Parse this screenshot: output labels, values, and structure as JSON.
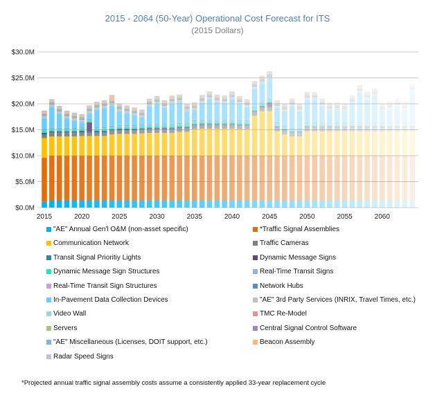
{
  "chart_data": {
    "type": "bar",
    "stacked": true,
    "title": "2015 - 2064 (50-Year) Operational Cost Forecast for ITS",
    "subtitle": "(2015 Dollars)",
    "xlabel": "",
    "ylabel": "",
    "ylim": [
      0,
      30
    ],
    "y_ticks": [
      "$0.0M",
      "$5.0M",
      "$10.0M",
      "$15.0M",
      "$20.0M",
      "$25.0M",
      "$30.0M"
    ],
    "x_ticks": [
      "2015",
      "2020",
      "2025",
      "2030",
      "2035",
      "2040",
      "2045",
      "2050",
      "2055",
      "2060"
    ],
    "grid": true,
    "legend": "bottom",
    "note": "later years drawn progressively faded",
    "categories": [
      2015,
      2016,
      2017,
      2018,
      2019,
      2020,
      2021,
      2022,
      2023,
      2024,
      2025,
      2026,
      2027,
      2028,
      2029,
      2030,
      2031,
      2032,
      2033,
      2034,
      2035,
      2036,
      2037,
      2038,
      2039,
      2040,
      2041,
      2042,
      2043,
      2044,
      2045,
      2046,
      2047,
      2048,
      2049,
      2050,
      2051,
      2052,
      2053,
      2054,
      2055,
      2056,
      2057,
      2058,
      2059,
      2060,
      2061,
      2062,
      2063,
      2064
    ],
    "series": [
      {
        "name": "\"AE\" Annual Gen'l O&M (non-asset specific)",
        "color": "#00b0f0",
        "values": [
          1.1,
          1.4,
          1.4,
          1.4,
          1.4,
          1.4,
          1.4,
          1.4,
          1.4,
          1.4,
          1.4,
          1.4,
          1.4,
          1.4,
          1.4,
          1.4,
          1.4,
          1.4,
          1.4,
          1.4,
          1.4,
          1.4,
          1.4,
          1.4,
          1.4,
          1.4,
          1.4,
          1.4,
          1.4,
          1.4,
          1.4,
          1.4,
          1.4,
          1.4,
          1.4,
          1.4,
          1.4,
          1.4,
          1.4,
          1.4,
          1.4,
          1.4,
          1.4,
          1.4,
          1.4,
          1.4,
          1.4,
          1.4,
          1.4,
          1.4
        ]
      },
      {
        "name": "*Traffic Signal Assemblies",
        "color": "#e46c0a",
        "values": [
          8.5,
          8.6,
          8.6,
          8.6,
          8.6,
          8.6,
          8.6,
          8.6,
          8.6,
          8.6,
          8.6,
          8.6,
          8.6,
          8.6,
          8.6,
          8.6,
          8.6,
          8.6,
          8.6,
          8.6,
          8.6,
          8.6,
          8.6,
          8.6,
          8.6,
          8.6,
          8.6,
          8.6,
          8.6,
          8.6,
          8.6,
          8.6,
          8.6,
          8.6,
          8.6,
          8.6,
          8.6,
          8.6,
          8.6,
          8.6,
          8.6,
          8.6,
          8.6,
          8.6,
          8.6,
          8.6,
          8.6,
          8.6,
          8.6,
          8.6
        ]
      },
      {
        "name": "Communication Network",
        "color": "#ffc000",
        "values": [
          3.8,
          3.7,
          3.7,
          3.7,
          3.7,
          3.8,
          3.8,
          3.8,
          3.8,
          4.1,
          4.2,
          4.2,
          4.2,
          4.3,
          4.4,
          4.4,
          4.4,
          4.4,
          4.6,
          4.6,
          5.1,
          5.2,
          5.2,
          5.2,
          5.2,
          5.2,
          5.1,
          5.1,
          7.7,
          8.6,
          8.6,
          4.7,
          4.1,
          3.7,
          3.7,
          4.7,
          4.7,
          4.7,
          4.7,
          4.7,
          4.7,
          4.7,
          4.7,
          4.7,
          4.7,
          4.7,
          4.7,
          4.7,
          4.7,
          4.7
        ]
      },
      {
        "name": "Traffic Cameras",
        "color": "#808080",
        "values": [
          0.6,
          0.6,
          0.6,
          0.6,
          0.6,
          0.6,
          0.6,
          0.6,
          0.6,
          0.6,
          0.6,
          0.6,
          0.6,
          0.6,
          0.6,
          0.6,
          0.6,
          0.6,
          0.6,
          0.6,
          0.6,
          0.6,
          0.6,
          0.6,
          0.6,
          0.6,
          0.6,
          0.6,
          0.6,
          0.6,
          0.6,
          0.6,
          0.6,
          0.6,
          0.6,
          0.6,
          0.6,
          0.6,
          0.6,
          0.6,
          0.6,
          0.6,
          0.6,
          0.6,
          0.6,
          0.6,
          0.6,
          0.6,
          0.6,
          0.6
        ]
      },
      {
        "name": "Transit Signal Prioritiy Lights",
        "color": "#31859c",
        "values": [
          0.2,
          0.2,
          0.2,
          0.2,
          0.2,
          0.2,
          0.2,
          0.2,
          0.2,
          0.2,
          0.2,
          0.2,
          0.2,
          0.2,
          0.2,
          0.2,
          0.2,
          0.2,
          0.2,
          0.2,
          0.2,
          0.2,
          0.2,
          0.2,
          0.2,
          0.2,
          0.2,
          0.2,
          0.2,
          0.2,
          0.2,
          0.2,
          0.2,
          0.2,
          0.2,
          0.2,
          0.2,
          0.2,
          0.2,
          0.2,
          0.2,
          0.2,
          0.2,
          0.2,
          0.2,
          0.2,
          0.2,
          0.2,
          0.2,
          0.2
        ]
      },
      {
        "name": "Dynamic Message Signs",
        "color": "#604a7b",
        "values": [
          0.2,
          0.2,
          0.2,
          0.2,
          0.2,
          0.2,
          1.8,
          0.2,
          0.2,
          0.2,
          0.2,
          0.2,
          0.2,
          0.2,
          0.2,
          0.2,
          0.2,
          0.2,
          0.2,
          0.2,
          0.2,
          0.2,
          0.2,
          0.2,
          0.2,
          0.2,
          0.2,
          0.2,
          0.2,
          0.2,
          0.9,
          0.2,
          0.2,
          0.2,
          0.2,
          0.2,
          0.2,
          0.2,
          0.2,
          0.2,
          0.2,
          0.2,
          0.2,
          0.2,
          0.2,
          0.2,
          0.2,
          0.2,
          0.2,
          0.2
        ]
      },
      {
        "name": "Dynamic Message Sign Structures",
        "color": "#1de9b6",
        "values": [
          0.4,
          0.4,
          0.4,
          0.4,
          0.4,
          0.4,
          0.4,
          0.4,
          0.4,
          0.4,
          0.4,
          0.4,
          0.4,
          0.4,
          0.4,
          0.4,
          0.4,
          0.4,
          0.4,
          0.4,
          0.4,
          0.4,
          0.4,
          0.4,
          0.4,
          0.4,
          0.4,
          0.4,
          0.4,
          0.4,
          0.4,
          0.4,
          0.4,
          0.4,
          0.4,
          0.4,
          0.4,
          0.4,
          0.4,
          0.4,
          0.4,
          0.4,
          0.4,
          0.4,
          0.4,
          0.4,
          0.4,
          0.4,
          0.4,
          0.4
        ]
      },
      {
        "name": "Real-Time Transit Signs",
        "color": "#95b3d7",
        "values": [
          0.1,
          0.1,
          0.1,
          0.1,
          0.1,
          0.1,
          0.1,
          0.1,
          0.1,
          0.1,
          0.1,
          0.1,
          0.1,
          0.1,
          0.1,
          0.1,
          0.1,
          0.1,
          0.1,
          0.1,
          0.1,
          0.1,
          0.1,
          0.1,
          0.1,
          0.1,
          0.1,
          0.1,
          0.1,
          0.1,
          0.1,
          0.1,
          0.1,
          0.1,
          0.1,
          0.1,
          0.1,
          0.1,
          0.1,
          0.1,
          0.1,
          0.1,
          0.1,
          0.1,
          0.1,
          0.1,
          0.1,
          0.1,
          0.1,
          0.1
        ]
      },
      {
        "name": "Real-Time Transit Sign Structures",
        "color": "#c9a0dc",
        "values": [
          0.05,
          0.05,
          0.05,
          0.05,
          0.05,
          0.05,
          0.05,
          0.05,
          0.05,
          0.05,
          0.05,
          0.05,
          0.05,
          0.05,
          0.05,
          0.05,
          0.05,
          0.05,
          0.05,
          0.05,
          0.05,
          0.05,
          0.05,
          0.05,
          0.05,
          0.05,
          0.05,
          0.05,
          0.05,
          0.05,
          0.05,
          0.05,
          0.05,
          0.05,
          0.05,
          0.05,
          0.05,
          0.05,
          0.05,
          0.05,
          0.05,
          0.05,
          0.05,
          0.05,
          0.05,
          0.05,
          0.05,
          0.05,
          0.05,
          0.05
        ]
      },
      {
        "name": "Network Hubs",
        "color": "#558ed5",
        "values": [
          0.1,
          0.1,
          0.1,
          0.1,
          0.1,
          0.1,
          0.1,
          0.1,
          0.1,
          0.1,
          0.1,
          0.1,
          0.1,
          0.1,
          0.1,
          0.1,
          0.1,
          0.1,
          0.1,
          0.1,
          0.1,
          0.1,
          0.1,
          0.1,
          0.1,
          0.1,
          0.1,
          0.1,
          0.1,
          0.1,
          0.1,
          0.1,
          0.1,
          0.1,
          0.1,
          0.1,
          0.1,
          0.1,
          0.1,
          0.1,
          0.1,
          0.1,
          0.1,
          0.1,
          0.1,
          0.1,
          0.1,
          0.1,
          0.1,
          0.1
        ]
      },
      {
        "name": "In-Pavement Data Collection Devices",
        "color": "#66ccff",
        "values": [
          2.1,
          4.0,
          2.7,
          1.8,
          1.4,
          1.0,
          1.1,
          3.4,
          3.7,
          3.9,
          2.7,
          2.3,
          1.9,
          1.4,
          3.4,
          3.9,
          3.1,
          4.0,
          4.0,
          2.3,
          2.0,
          3.3,
          4.0,
          3.4,
          3.2,
          4.0,
          3.2,
          2.6,
          3.5,
          3.6,
          3.8,
          2.8,
          2.8,
          4.1,
          3.2,
          4.4,
          4.4,
          3.1,
          2.3,
          2.4,
          2.2,
          3.7,
          5.7,
          4.5,
          5.1,
          2.2,
          2.5,
          3.1,
          2.5,
          6.0
        ]
      },
      {
        "name": "\"AE\" 3rd Party Services (INRIX, Travel Times, etc.)",
        "color": "#c0c0c0",
        "values": [
          0.3,
          0.3,
          0.3,
          0.3,
          0.3,
          0.3,
          0.3,
          0.3,
          0.3,
          0.3,
          0.3,
          0.3,
          0.3,
          0.3,
          0.3,
          0.3,
          0.3,
          0.3,
          0.3,
          0.3,
          0.3,
          0.3,
          0.3,
          0.3,
          0.3,
          0.3,
          0.3,
          0.3,
          0.3,
          0.3,
          0.3,
          0.3,
          0.3,
          0.3,
          0.3,
          0.3,
          0.3,
          0.3,
          0.3,
          0.3,
          0.3,
          0.3,
          0.3,
          0.3,
          0.3,
          0.3,
          0.3,
          0.3,
          0.3,
          0.3
        ]
      },
      {
        "name": "Video Wall",
        "color": "#9dd3e0",
        "values": [
          0.2,
          0.2,
          0.2,
          0.2,
          0.2,
          0.2,
          0.2,
          0.2,
          0.2,
          0.2,
          0.2,
          0.2,
          0.2,
          0.2,
          0.2,
          0.2,
          0.2,
          0.2,
          0.2,
          0.2,
          0.2,
          0.2,
          0.2,
          0.2,
          0.2,
          0.2,
          0.2,
          0.2,
          0.2,
          0.2,
          0.2,
          0.2,
          0.2,
          0.2,
          0.2,
          0.2,
          0.2,
          0.2,
          0.2,
          0.2,
          0.2,
          0.2,
          0.2,
          0.2,
          0.2,
          0.2,
          0.2,
          0.2,
          0.2,
          0.2
        ]
      },
      {
        "name": "TMC Re-Model",
        "color": "#d99694",
        "values": [
          0.02,
          0.02,
          0.02,
          0.02,
          0.02,
          0.02,
          0.02,
          0.02,
          0.02,
          0.02,
          0.02,
          0.02,
          0.02,
          0.02,
          0.02,
          0.02,
          0.02,
          0.02,
          0.02,
          0.02,
          0.02,
          0.02,
          0.02,
          0.02,
          0.02,
          0.02,
          0.02,
          0.02,
          0.02,
          0.02,
          0.02,
          0.02,
          0.02,
          0.02,
          0.02,
          0.02,
          0.02,
          0.02,
          0.02,
          0.02,
          0.02,
          0.02,
          0.02,
          0.02,
          0.02,
          0.02,
          0.02,
          0.02,
          0.02,
          0.02
        ]
      },
      {
        "name": "Servers",
        "color": "#a9c47f",
        "values": [
          0.02,
          0.02,
          0.02,
          0.02,
          0.02,
          0.02,
          0.02,
          0.02,
          0.02,
          0.02,
          0.02,
          0.02,
          0.02,
          0.02,
          0.02,
          0.02,
          0.02,
          0.02,
          0.02,
          0.02,
          0.02,
          0.02,
          0.02,
          0.02,
          0.02,
          0.02,
          0.02,
          0.02,
          0.02,
          0.02,
          0.02,
          0.02,
          0.02,
          0.02,
          0.02,
          0.02,
          0.02,
          0.02,
          0.02,
          0.02,
          0.02,
          0.02,
          0.02,
          0.02,
          0.02,
          0.02,
          0.02,
          0.02,
          0.02,
          0.02
        ]
      },
      {
        "name": "Central Signal Control Software",
        "color": "#9e86c0",
        "values": [
          0.1,
          0.1,
          0.1,
          0.1,
          0.1,
          0.1,
          0.1,
          0.1,
          0.1,
          0.1,
          0.1,
          0.1,
          0.1,
          0.1,
          0.1,
          0.1,
          0.1,
          0.1,
          0.1,
          0.1,
          0.1,
          0.1,
          0.1,
          0.1,
          0.1,
          0.1,
          0.1,
          0.1,
          0.1,
          0.1,
          0.1,
          0.1,
          0.1,
          0.1,
          0.1,
          0.1,
          0.1,
          0.1,
          0.1,
          0.1,
          0.1,
          0.1,
          0.1,
          0.1,
          0.1,
          0.1,
          0.1,
          0.1,
          0.1,
          0.1
        ]
      },
      {
        "name": "\"AE\" Miscellaneous (Licenses, DOIT support, etc.)",
        "color": "#7fb8cc",
        "values": [
          0.3,
          0.3,
          0.3,
          0.3,
          0.3,
          0.3,
          0.3,
          0.3,
          0.3,
          0.3,
          0.3,
          0.3,
          0.3,
          0.3,
          0.3,
          0.3,
          0.3,
          0.3,
          0.3,
          0.3,
          0.3,
          0.3,
          0.3,
          0.3,
          0.3,
          0.3,
          0.3,
          0.3,
          0.3,
          0.3,
          0.3,
          0.3,
          0.3,
          0.3,
          0.3,
          0.3,
          0.3,
          0.3,
          0.3,
          0.3,
          0.3,
          0.3,
          0.3,
          0.3,
          0.3,
          0.3,
          0.3,
          0.3,
          0.3,
          0.3
        ]
      },
      {
        "name": "Beacon Assembly",
        "color": "#fab47c",
        "values": [
          0.3,
          0.3,
          0.3,
          0.3,
          0.3,
          0.3,
          0.3,
          0.3,
          0.3,
          0.8,
          0.3,
          0.3,
          0.3,
          0.3,
          0.3,
          0.3,
          0.3,
          0.3,
          0.3,
          0.3,
          0.3,
          0.3,
          0.3,
          0.3,
          0.3,
          0.3,
          0.3,
          0.3,
          0.3,
          0.3,
          0.3,
          0.3,
          0.3,
          0.3,
          0.3,
          0.3,
          0.3,
          0.3,
          0.3,
          0.3,
          0.3,
          0.3,
          0.3,
          0.3,
          0.3,
          0.3,
          0.3,
          0.3,
          0.3,
          0.3
        ]
      },
      {
        "name": "Radar Speed Signs",
        "color": "#b9c3dc",
        "values": [
          0.3,
          0.3,
          0.3,
          0.3,
          0.3,
          0.3,
          0.3,
          0.3,
          0.3,
          0.3,
          0.3,
          0.3,
          0.3,
          0.3,
          0.3,
          0.3,
          0.3,
          0.3,
          0.3,
          0.3,
          0.3,
          0.3,
          0.3,
          0.3,
          0.3,
          0.3,
          0.3,
          0.3,
          0.3,
          0.3,
          0.3,
          0.3,
          0.3,
          0.3,
          0.3,
          0.3,
          0.3,
          0.3,
          0.3,
          0.3,
          0.3,
          0.3,
          0.3,
          0.3,
          0.3,
          0.3,
          0.3,
          0.3,
          0.3,
          0.3
        ]
      }
    ],
    "footnote": "*Projected annual traffic signal assembly costs assume a consistently applied 33-year replacement cycle"
  }
}
